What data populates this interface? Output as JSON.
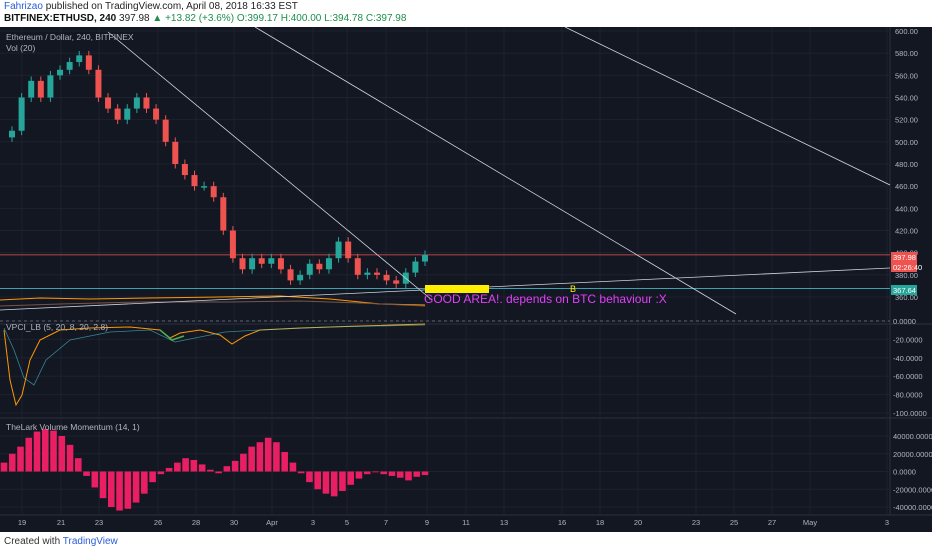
{
  "header": {
    "author": "Fahrizao",
    "published_text": "published on TradingView.com, April 08, 2018 16:33 EST",
    "symbol": "BITFINEX:ETHUSD, 240",
    "last": "397.98",
    "change": "▲ +13.82 (+3.6%)",
    "open": "O:399.17",
    "high": "H:400.00",
    "low": "L:394.78",
    "close": "C:397.98"
  },
  "chart_data": {
    "type": "candlestick",
    "main_legend": "Ethereum / Dollar, 240, BITFINEX",
    "volume_legend": "Vol (20)",
    "price_axis_ticks": [
      "600.00",
      "580.00",
      "560.00",
      "540.00",
      "520.00",
      "500.00",
      "480.00",
      "460.00",
      "440.00",
      "420.00",
      "400.00",
      "380.00",
      "360.00"
    ],
    "price_labels": {
      "current": "397.98",
      "mid": "02:26:40",
      "support": "367.64"
    },
    "ylim": [
      350,
      602
    ],
    "current_price": 397.98,
    "support_level": 367.64,
    "x_tick_labels": [
      "19",
      "21",
      "23",
      "26",
      "28",
      "30",
      "Apr",
      "3",
      "5",
      "7",
      "9",
      "11",
      "13",
      "16",
      "18",
      "20",
      "23",
      "25",
      "27",
      "May",
      "3"
    ],
    "annotation": "GOOD AREA!. depends on BTC behaviour :X",
    "annotation_marker": "B",
    "price_series": [
      {
        "date": "Mar 18",
        "close": 510
      },
      {
        "date": "Mar 18",
        "close": 540
      },
      {
        "date": "Mar 19",
        "close": 555
      },
      {
        "date": "Mar 19",
        "close": 540
      },
      {
        "date": "Mar 20",
        "close": 560
      },
      {
        "date": "Mar 20",
        "close": 565
      },
      {
        "date": "Mar 21",
        "close": 572
      },
      {
        "date": "Mar 21",
        "close": 578
      },
      {
        "date": "Mar 22",
        "close": 565
      },
      {
        "date": "Mar 22",
        "close": 540
      },
      {
        "date": "Mar 23",
        "close": 530
      },
      {
        "date": "Mar 23",
        "close": 520
      },
      {
        "date": "Mar 24",
        "close": 530
      },
      {
        "date": "Mar 24",
        "close": 540
      },
      {
        "date": "Mar 25",
        "close": 530
      },
      {
        "date": "Mar 25",
        "close": 520
      },
      {
        "date": "Mar 26",
        "close": 500
      },
      {
        "date": "Mar 26",
        "close": 480
      },
      {
        "date": "Mar 27",
        "close": 470
      },
      {
        "date": "Mar 27",
        "close": 460
      },
      {
        "date": "Mar 28",
        "close": 460
      },
      {
        "date": "Mar 28",
        "close": 450
      },
      {
        "date": "Mar 29",
        "close": 420
      },
      {
        "date": "Mar 29",
        "close": 395
      },
      {
        "date": "Mar 30",
        "close": 385
      },
      {
        "date": "Mar 30",
        "close": 395
      },
      {
        "date": "Mar 31",
        "close": 390
      },
      {
        "date": "Mar 31",
        "close": 395
      },
      {
        "date": "Apr 1",
        "close": 385
      },
      {
        "date": "Apr 1",
        "close": 375
      },
      {
        "date": "Apr 2",
        "close": 380
      },
      {
        "date": "Apr 2",
        "close": 390
      },
      {
        "date": "Apr 3",
        "close": 385
      },
      {
        "date": "Apr 3",
        "close": 395
      },
      {
        "date": "Apr 4",
        "close": 410
      },
      {
        "date": "Apr 4",
        "close": 395
      },
      {
        "date": "Apr 5",
        "close": 380
      },
      {
        "date": "Apr 5",
        "close": 382
      },
      {
        "date": "Apr 6",
        "close": 380
      },
      {
        "date": "Apr 6",
        "close": 375
      },
      {
        "date": "Apr 7",
        "close": 372
      },
      {
        "date": "Apr 7",
        "close": 382
      },
      {
        "date": "Apr 8",
        "close": 392
      },
      {
        "date": "Apr 8",
        "close": 398
      }
    ],
    "vpci": {
      "legend": "VPCI_LB (5, 20, 8, 20, 2.8)",
      "ticks": [
        "0.0000",
        "-20.0000",
        "-40.0000",
        "-60.0000",
        "-80.0000",
        "-100.0000"
      ],
      "ylim": [
        -100,
        5
      ]
    },
    "volume_momentum": {
      "legend": "TheLark Volume Momentum (14, 1)",
      "ticks": [
        "40000.0000",
        "20000.0000",
        "0.0000",
        "-20000.0000",
        "-40000.0000"
      ],
      "ylim": [
        -50000,
        55000
      ],
      "values": [
        10000,
        20000,
        28000,
        38000,
        45000,
        48000,
        46000,
        40000,
        30000,
        15000,
        -5000,
        -18000,
        -30000,
        -40000,
        -44000,
        -42000,
        -35000,
        -25000,
        -12000,
        -3000,
        4000,
        10000,
        15000,
        13000,
        8000,
        2000,
        -2000,
        6000,
        12000,
        20000,
        28000,
        33000,
        38000,
        33000,
        22000,
        10000,
        -2000,
        -12000,
        -20000,
        -25000,
        -28000,
        -22000,
        -15000,
        -8000,
        -3000,
        0,
        -3000,
        -5000,
        -7000,
        -10000,
        -6000,
        -4000
      ]
    }
  },
  "footer": {
    "created_with": "Created with",
    "brand": "TradingView"
  }
}
